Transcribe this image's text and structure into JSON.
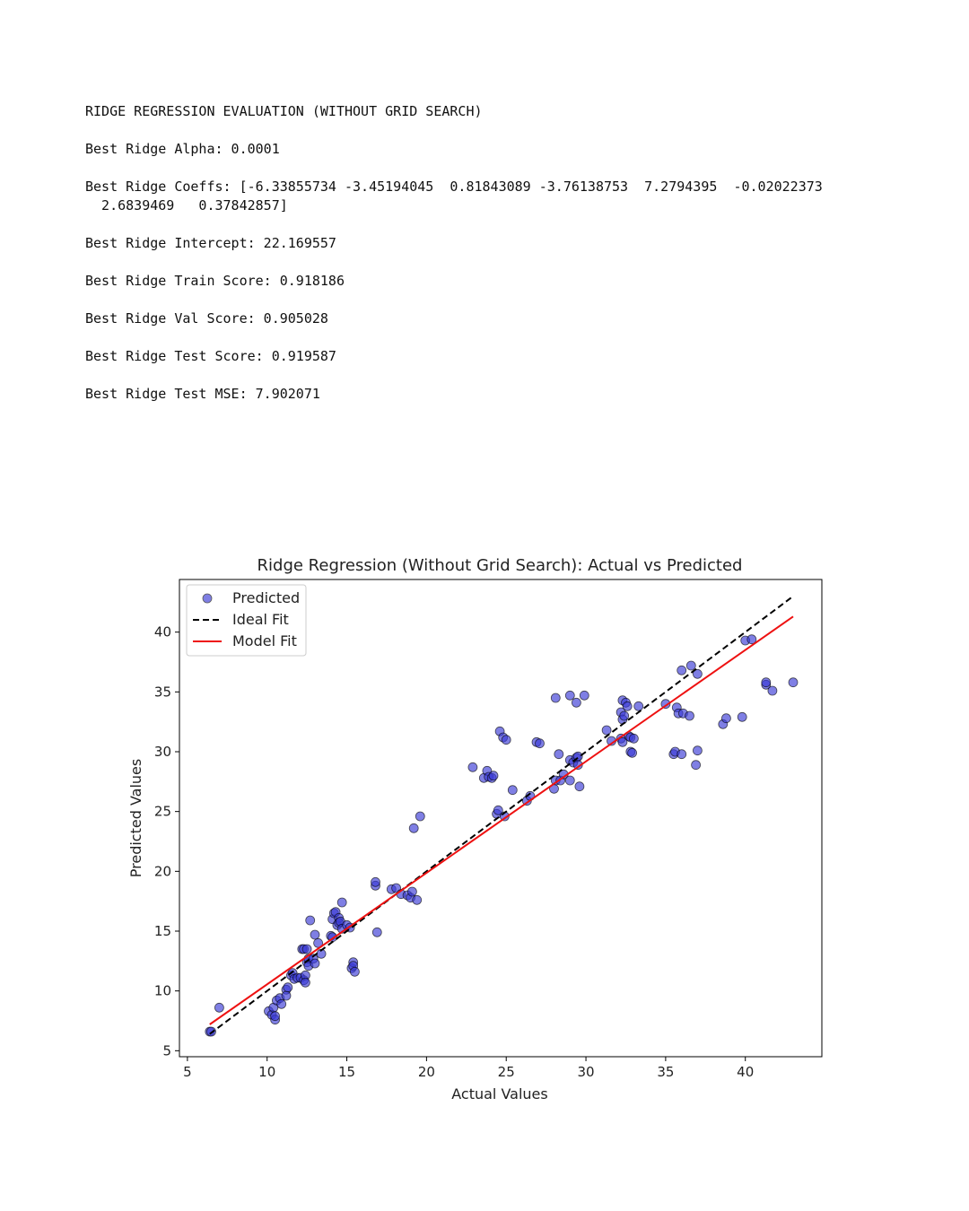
{
  "output": {
    "heading": "RIDGE REGRESSION EVALUATION (WITHOUT GRID SEARCH)",
    "alpha": "Best Ridge Alpha: 0.0001",
    "coeffs_line1": "Best Ridge Coeffs: [-6.33855734 -3.45194045  0.81843089 -3.76138753  7.2794395  -0.02022373",
    "coeffs_line2": "  2.6839469   0.37842857]",
    "intercept": "Best Ridge Intercept: 22.169557",
    "train_score": "Best Ridge Train Score: 0.918186",
    "val_score": "Best Ridge Val Score: 0.905028",
    "test_score": "Best Ridge Test Score: 0.919587",
    "test_mse": "Best Ridge Test MSE: 7.902071"
  },
  "colors": {
    "points": "#3a3ad6",
    "point_edge": "#000000",
    "ideal": "#000000",
    "model": "#ee1111"
  },
  "chart_data": {
    "type": "scatter",
    "title": "Ridge Regression (Without Grid Search): Actual vs Predicted",
    "xlabel": "Actual Values",
    "ylabel": "Predicted Values",
    "xlim": [
      4.5,
      44.8
    ],
    "ylim": [
      4.5,
      44.4
    ],
    "xticks": [
      5,
      10,
      15,
      20,
      25,
      30,
      35,
      40
    ],
    "yticks": [
      5,
      10,
      15,
      20,
      25,
      30,
      35,
      40
    ],
    "legend": {
      "position": "top-left",
      "entries": [
        "Predicted",
        "Ideal Fit",
        "Model Fit"
      ]
    },
    "series": [
      {
        "name": "Predicted",
        "kind": "scatter",
        "points": [
          [
            6.4,
            6.6
          ],
          [
            6.5,
            6.6
          ],
          [
            7.0,
            8.6
          ],
          [
            10.1,
            8.3
          ],
          [
            10.3,
            8.0
          ],
          [
            10.4,
            8.6
          ],
          [
            10.5,
            7.6
          ],
          [
            10.5,
            7.9
          ],
          [
            10.6,
            9.2
          ],
          [
            10.8,
            9.4
          ],
          [
            10.9,
            8.9
          ],
          [
            11.2,
            10.1
          ],
          [
            11.2,
            9.6
          ],
          [
            11.3,
            10.3
          ],
          [
            11.5,
            11.3
          ],
          [
            11.6,
            11.5
          ],
          [
            11.7,
            11.0
          ],
          [
            11.9,
            11.1
          ],
          [
            12.1,
            11.1
          ],
          [
            12.2,
            13.5
          ],
          [
            12.3,
            13.5
          ],
          [
            12.3,
            10.9
          ],
          [
            12.4,
            11.3
          ],
          [
            12.4,
            10.7
          ],
          [
            12.5,
            12.4
          ],
          [
            12.5,
            13.5
          ],
          [
            12.6,
            12.7
          ],
          [
            12.6,
            12.1
          ],
          [
            12.7,
            15.9
          ],
          [
            12.9,
            12.7
          ],
          [
            13.0,
            12.3
          ],
          [
            13.0,
            14.7
          ],
          [
            13.2,
            14.0
          ],
          [
            13.4,
            13.1
          ],
          [
            14.0,
            14.6
          ],
          [
            14.1,
            14.5
          ],
          [
            14.1,
            16.0
          ],
          [
            14.2,
            16.5
          ],
          [
            14.3,
            16.6
          ],
          [
            14.4,
            15.5
          ],
          [
            14.5,
            16.1
          ],
          [
            14.5,
            15.7
          ],
          [
            14.6,
            15.8
          ],
          [
            14.7,
            17.4
          ],
          [
            14.7,
            15.2
          ],
          [
            15.0,
            15.5
          ],
          [
            15.2,
            15.3
          ],
          [
            15.3,
            11.9
          ],
          [
            15.4,
            12.4
          ],
          [
            15.4,
            12.1
          ],
          [
            15.5,
            11.6
          ],
          [
            16.8,
            18.8
          ],
          [
            16.8,
            19.1
          ],
          [
            16.9,
            14.9
          ],
          [
            17.8,
            18.5
          ],
          [
            18.1,
            18.6
          ],
          [
            18.4,
            18.1
          ],
          [
            18.8,
            18.0
          ],
          [
            19.0,
            17.8
          ],
          [
            19.1,
            18.3
          ],
          [
            19.2,
            23.6
          ],
          [
            19.4,
            17.6
          ],
          [
            19.6,
            24.6
          ],
          [
            22.9,
            28.7
          ],
          [
            23.6,
            27.8
          ],
          [
            23.8,
            28.4
          ],
          [
            23.9,
            27.9
          ],
          [
            24.1,
            27.8
          ],
          [
            24.2,
            28.0
          ],
          [
            24.4,
            24.8
          ],
          [
            24.5,
            25.1
          ],
          [
            24.6,
            31.7
          ],
          [
            24.8,
            31.2
          ],
          [
            24.9,
            24.6
          ],
          [
            25.0,
            31.0
          ],
          [
            25.4,
            26.8
          ],
          [
            26.3,
            25.9
          ],
          [
            26.5,
            26.3
          ],
          [
            26.9,
            30.8
          ],
          [
            27.1,
            30.7
          ],
          [
            28.0,
            26.9
          ],
          [
            28.1,
            34.5
          ],
          [
            28.1,
            27.6
          ],
          [
            28.3,
            29.8
          ],
          [
            28.4,
            27.6
          ],
          [
            28.6,
            28.1
          ],
          [
            29.0,
            29.3
          ],
          [
            29.0,
            34.7
          ],
          [
            29.0,
            27.6
          ],
          [
            29.2,
            29.1
          ],
          [
            29.4,
            29.5
          ],
          [
            29.4,
            34.1
          ],
          [
            29.5,
            29.6
          ],
          [
            29.5,
            28.9
          ],
          [
            29.6,
            27.1
          ],
          [
            29.9,
            34.7
          ],
          [
            31.3,
            31.8
          ],
          [
            31.6,
            30.9
          ],
          [
            32.2,
            33.3
          ],
          [
            32.2,
            31.1
          ],
          [
            32.3,
            32.7
          ],
          [
            32.3,
            30.8
          ],
          [
            32.3,
            34.3
          ],
          [
            32.4,
            33.0
          ],
          [
            32.5,
            34.1
          ],
          [
            32.6,
            33.8
          ],
          [
            32.7,
            31.3
          ],
          [
            32.8,
            31.2
          ],
          [
            32.8,
            30.0
          ],
          [
            32.9,
            29.9
          ],
          [
            33.0,
            31.1
          ],
          [
            33.3,
            33.8
          ],
          [
            35.0,
            34.0
          ],
          [
            35.5,
            29.8
          ],
          [
            35.6,
            30.0
          ],
          [
            35.7,
            33.7
          ],
          [
            35.8,
            33.2
          ],
          [
            36.0,
            29.8
          ],
          [
            36.0,
            36.8
          ],
          [
            36.1,
            33.2
          ],
          [
            36.5,
            33.0
          ],
          [
            36.6,
            37.2
          ],
          [
            36.9,
            28.9
          ],
          [
            37.0,
            30.1
          ],
          [
            37.0,
            36.5
          ],
          [
            38.6,
            32.3
          ],
          [
            38.8,
            32.8
          ],
          [
            39.8,
            32.9
          ],
          [
            40.0,
            39.3
          ],
          [
            40.4,
            39.4
          ],
          [
            41.3,
            35.6
          ],
          [
            41.3,
            35.8
          ],
          [
            41.7,
            35.1
          ],
          [
            43.0,
            35.8
          ]
        ]
      },
      {
        "name": "Ideal Fit",
        "kind": "line",
        "style": "dashed",
        "x": [
          6.4,
          43.0
        ],
        "y": [
          6.4,
          43.0
        ]
      },
      {
        "name": "Model Fit",
        "kind": "line",
        "style": "solid",
        "x": [
          6.4,
          43.0
        ],
        "y": [
          7.2,
          41.3
        ]
      }
    ]
  }
}
